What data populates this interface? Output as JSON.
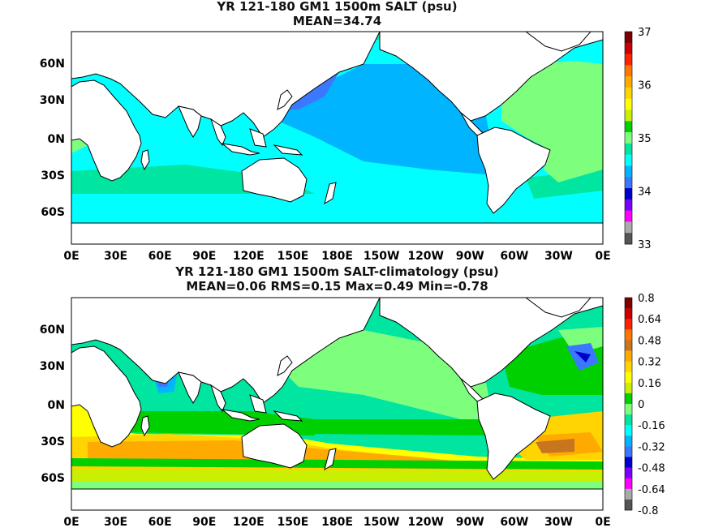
{
  "top_panel": {
    "title_line1": "YR 121-180 GM1 1500m SALT (psu)",
    "title_line2": "MEAN=34.74",
    "colorbar": {
      "labels": [
        "37",
        "36",
        "35",
        "34",
        "33"
      ],
      "colors": [
        "#7d0000",
        "#cc0000",
        "#ff2200",
        "#ff7700",
        "#ffaa00",
        "#ffd400",
        "#ffff00",
        "#c8f000",
        "#00d000",
        "#7dff7d",
        "#00e5a0",
        "#00ffff",
        "#00b4ff",
        "#3c78ff",
        "#0000cc",
        "#7d00ff",
        "#ff00ff",
        "#aaaaaa",
        "#555555"
      ]
    }
  },
  "bottom_panel": {
    "title_line1": "YR 121-180 GM1 1500m SALT-climatology (psu)",
    "title_line2": "MEAN=0.06   RMS=0.15   Max=0.49   Min=-0.78",
    "colorbar": {
      "labels": [
        "0.8",
        "0.64",
        "0.48",
        "0.32",
        "0.16",
        "0",
        "-0.16",
        "-0.32",
        "-0.48",
        "-0.64",
        "-0.8"
      ],
      "colors": [
        "#7d0000",
        "#cc0000",
        "#ff2200",
        "#ff7700",
        "#c8761e",
        "#ffaa00",
        "#ffd400",
        "#ffff00",
        "#c8f000",
        "#00d000",
        "#7dff7d",
        "#00e5a0",
        "#00ffff",
        "#00b4ff",
        "#3c78ff",
        "#0000cc",
        "#7d00ff",
        "#ff00ff",
        "#aaaaaa",
        "#555555"
      ]
    }
  },
  "axes": {
    "lon_labels": [
      "0E",
      "30E",
      "60E",
      "90E",
      "120E",
      "150E",
      "180E",
      "150W",
      "120W",
      "90W",
      "60W",
      "30W",
      "0E"
    ],
    "lat_labels": [
      "60N",
      "30N",
      "0N",
      "30S",
      "60S"
    ]
  },
  "chart_data": [
    {
      "type": "heatmap",
      "title": "YR 121-180 GM1 1500m SALT (psu)",
      "subtitle": "MEAN=34.74",
      "x_ticks": [
        "0E",
        "30E",
        "60E",
        "90E",
        "120E",
        "150E",
        "180E",
        "150W",
        "120W",
        "90W",
        "60W",
        "30W",
        "0E"
      ],
      "y_ticks": [
        "60N",
        "30N",
        "0N",
        "30S",
        "60S"
      ],
      "colorbar_range": [
        33,
        37
      ],
      "colorbar_ticks": [
        37,
        36,
        35,
        34,
        33
      ],
      "mean": 34.74
    },
    {
      "type": "heatmap",
      "title": "YR 121-180 GM1 1500m SALT-climatology (psu)",
      "subtitle": "MEAN=0.06   RMS=0.15   Max=0.49   Min=-0.78",
      "x_ticks": [
        "0E",
        "30E",
        "60E",
        "90E",
        "120E",
        "150E",
        "180E",
        "150W",
        "120W",
        "90W",
        "60W",
        "30W",
        "0E"
      ],
      "y_ticks": [
        "60N",
        "30N",
        "0N",
        "30S",
        "60S"
      ],
      "colorbar_range": [
        -0.8,
        0.8
      ],
      "colorbar_ticks": [
        0.8,
        0.64,
        0.48,
        0.32,
        0.16,
        0,
        -0.16,
        -0.32,
        -0.48,
        -0.64,
        -0.8
      ],
      "mean": 0.06,
      "rms": 0.15,
      "max": 0.49,
      "min": -0.78
    }
  ]
}
